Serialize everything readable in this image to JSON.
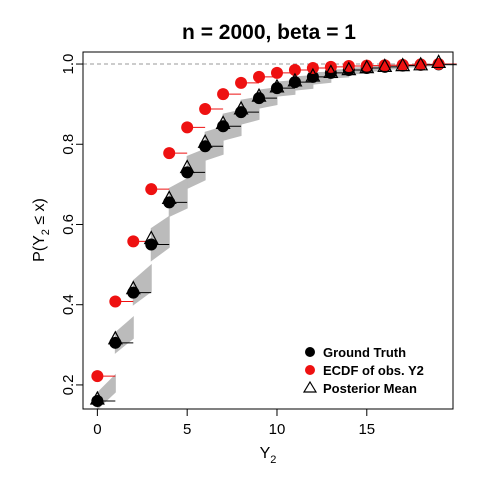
{
  "chart_data": {
    "type": "scatter",
    "title": "n = 2000, beta = 1",
    "xlabel": {
      "main": "Y",
      "sub": "2"
    },
    "ylabel": {
      "pre": "P(Y",
      "sub": "2",
      "post": " ≤ x)"
    },
    "xlim": [
      -0.8,
      19.8
    ],
    "ylim": [
      0.14,
      1.03
    ],
    "x_ticks": [
      0,
      5,
      10,
      15
    ],
    "y_ticks": [
      0.2,
      0.4,
      0.6,
      0.8,
      1.0
    ],
    "y_tick_labels": [
      "0.2",
      "0.4",
      "0.6",
      "0.8",
      "1.0"
    ],
    "reference_line": {
      "y": 1.0,
      "style": "dashed",
      "color": "#999999"
    },
    "x": [
      0,
      1,
      2,
      3,
      4,
      5,
      6,
      7,
      8,
      9,
      10,
      11,
      12,
      13,
      14,
      15,
      16,
      17,
      18,
      19
    ],
    "series": [
      {
        "name": "Ground Truth",
        "marker": "filled-circle",
        "color": "#000000",
        "values": [
          0.16,
          0.305,
          0.43,
          0.55,
          0.655,
          0.73,
          0.795,
          0.845,
          0.88,
          0.915,
          0.94,
          0.955,
          0.968,
          0.978,
          0.985,
          0.99,
          0.993,
          0.996,
          0.998,
          0.999
        ]
      },
      {
        "name": "ECDF of obs. Y2",
        "marker": "filled-circle",
        "color": "#ee1111",
        "values": [
          0.222,
          0.408,
          0.558,
          0.688,
          0.778,
          0.842,
          0.888,
          0.925,
          0.953,
          0.968,
          0.978,
          0.985,
          0.99,
          0.993,
          0.995,
          0.996,
          0.997,
          0.998,
          0.999,
          1.0
        ]
      },
      {
        "name": "Posterior Mean",
        "marker": "open-triangle",
        "color": "#000000",
        "values": [
          0.165,
          0.315,
          0.44,
          0.565,
          0.665,
          0.742,
          0.805,
          0.852,
          0.888,
          0.92,
          0.943,
          0.958,
          0.97,
          0.979,
          0.986,
          0.991,
          0.994,
          0.996,
          0.998,
          1.004
        ]
      }
    ],
    "posterior_band": {
      "color": "#bbbbbb",
      "lower": [
        0.14,
        0.28,
        0.4,
        0.51,
        0.62,
        0.69,
        0.76,
        0.81,
        0.85,
        0.89,
        0.92,
        0.935,
        0.95,
        0.965,
        0.975,
        0.982,
        0.987,
        0.992,
        0.995,
        0.997
      ],
      "upper": [
        0.18,
        0.33,
        0.46,
        0.59,
        0.69,
        0.77,
        0.83,
        0.875,
        0.91,
        0.935,
        0.955,
        0.968,
        0.978,
        0.985,
        0.99,
        0.994,
        0.996,
        0.998,
        0.999,
        1.0
      ]
    },
    "legend": {
      "position": "bottom-right"
    }
  }
}
